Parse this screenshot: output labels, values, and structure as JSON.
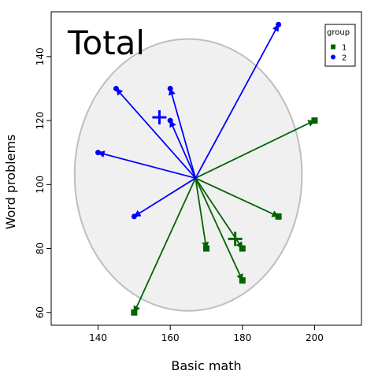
{
  "chart_data": {
    "type": "scatter",
    "title": "Total",
    "xlabel": "Basic math",
    "ylabel": "Word problems",
    "xlim": [
      127,
      213
    ],
    "ylim": [
      56,
      154
    ],
    "x_ticks": [
      "140",
      "160",
      "180",
      "200"
    ],
    "y_ticks": [
      "60",
      "80",
      "100",
      "120",
      "140"
    ],
    "centroid": [
      167,
      102
    ],
    "ellipse": {
      "center": [
        165,
        103
      ],
      "rx": 31.5,
      "ry": 42.5,
      "fill": "#f0f0f0",
      "stroke": "#bebebe"
    },
    "legend": {
      "title": "group",
      "placement": "top-right",
      "entries": [
        "1",
        "2"
      ]
    },
    "series": [
      {
        "name": "1",
        "color": "#006400",
        "marker": "square",
        "group_mean": [
          178,
          83
        ],
        "points": [
          [
            200,
            120
          ],
          [
            190,
            90
          ],
          [
            170,
            80
          ],
          [
            180,
            80
          ],
          [
            180,
            70
          ],
          [
            150,
            60
          ]
        ]
      },
      {
        "name": "2",
        "color": "#0000ff",
        "marker": "circle",
        "group_mean": [
          157,
          121
        ],
        "points": [
          [
            190,
            150
          ],
          [
            145,
            130
          ],
          [
            160,
            130
          ],
          [
            160,
            120
          ],
          [
            140,
            110
          ],
          [
            150,
            90
          ]
        ]
      }
    ]
  }
}
